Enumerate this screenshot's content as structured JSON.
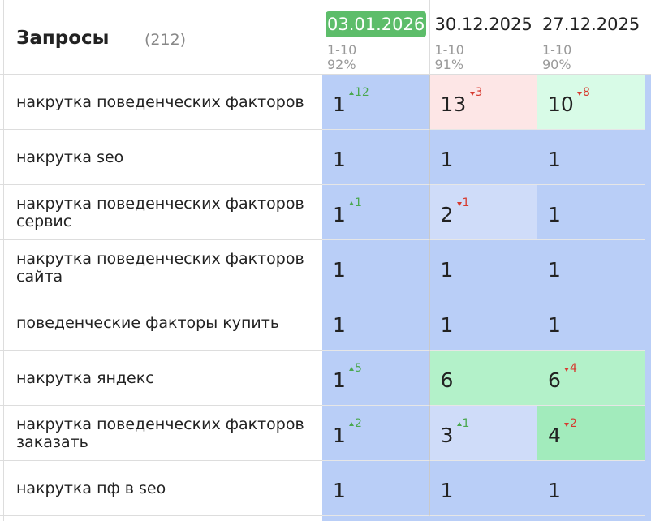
{
  "header": {
    "title": "Запросы",
    "count": "(212)",
    "columns": [
      {
        "date": "03.01.2026",
        "range": "1-10",
        "share": "92%",
        "current": true
      },
      {
        "date": "30.12.2025",
        "range": "1-10",
        "share": "91%",
        "current": false
      },
      {
        "date": "27.12.2025",
        "range": "1-10",
        "share": "90%",
        "current": false
      }
    ]
  },
  "table": {
    "rows": [
      {
        "query": "накрутка поведенческих факторов",
        "cells": [
          {
            "position": "1",
            "change": "12",
            "dir": "up",
            "color": "#b9cef7"
          },
          {
            "position": "13",
            "change": "3",
            "dir": "down",
            "color": "#fde6e6"
          },
          {
            "position": "10",
            "change": "8",
            "dir": "down",
            "color": "#d8fbe7"
          }
        ]
      },
      {
        "query": "накрутка seo",
        "cells": [
          {
            "position": "1",
            "color": "#b9cef7"
          },
          {
            "position": "1",
            "color": "#b9cef7"
          },
          {
            "position": "1",
            "color": "#b9cef7"
          }
        ]
      },
      {
        "query": "накрутка поведенческих факторов сервис",
        "cells": [
          {
            "position": "1",
            "change": "1",
            "dir": "up",
            "color": "#b9cef7"
          },
          {
            "position": "2",
            "change": "1",
            "dir": "down",
            "color": "#cfdcf9"
          },
          {
            "position": "1",
            "color": "#b9cef7"
          }
        ]
      },
      {
        "query": "накрутка поведенческих факторов сайта",
        "cells": [
          {
            "position": "1",
            "color": "#b9cef7"
          },
          {
            "position": "1",
            "color": "#b9cef7"
          },
          {
            "position": "1",
            "color": "#b9cef7"
          }
        ]
      },
      {
        "query": "поведенческие факторы купить",
        "cells": [
          {
            "position": "1",
            "color": "#b9cef7"
          },
          {
            "position": "1",
            "color": "#b9cef7"
          },
          {
            "position": "1",
            "color": "#b9cef7"
          }
        ]
      },
      {
        "query": "накрутка яндекс",
        "cells": [
          {
            "position": "1",
            "change": "5",
            "dir": "up",
            "color": "#b9cef7"
          },
          {
            "position": "6",
            "color": "#b3f1c9"
          },
          {
            "position": "6",
            "change": "4",
            "dir": "down",
            "color": "#b3f1c9"
          }
        ]
      },
      {
        "query": "накрутка поведенческих факторов заказать",
        "cells": [
          {
            "position": "1",
            "change": "2",
            "dir": "up",
            "color": "#b9cef7"
          },
          {
            "position": "3",
            "change": "1",
            "dir": "up",
            "color": "#cfdcf9"
          },
          {
            "position": "4",
            "change": "2",
            "dir": "down",
            "color": "#a2ebbc"
          }
        ]
      },
      {
        "query": "накрутка пф в seo",
        "cells": [
          {
            "position": "1",
            "color": "#b9cef7"
          },
          {
            "position": "1",
            "color": "#b9cef7"
          },
          {
            "position": "1",
            "color": "#b9cef7"
          }
        ]
      }
    ]
  }
}
